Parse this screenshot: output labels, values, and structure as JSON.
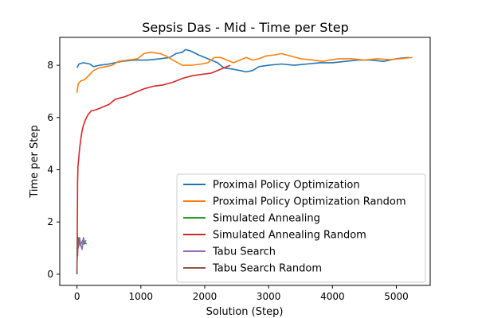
{
  "chart_data": {
    "type": "line",
    "title": "Sepsis Das - Mid - Time per Step",
    "xlabel": "Solution (Step)",
    "ylabel": "Time per Step",
    "xlim": [
      -270,
      5530
    ],
    "ylim": [
      -0.43,
      9.07
    ],
    "xticks": [
      0,
      1000,
      2000,
      3000,
      4000,
      5000
    ],
    "yticks": [
      0,
      2,
      4,
      6,
      8
    ],
    "grid": false,
    "legend_position": "lower-right",
    "series": [
      {
        "name": "Proximal Policy Optimization",
        "color": "#1f77b4",
        "points": [
          [
            0,
            7.9
          ],
          [
            30,
            8.05
          ],
          [
            100,
            8.1
          ],
          [
            200,
            8.05
          ],
          [
            260,
            7.95
          ],
          [
            350,
            8.0
          ],
          [
            500,
            8.05
          ],
          [
            700,
            8.15
          ],
          [
            900,
            8.2
          ],
          [
            1100,
            8.2
          ],
          [
            1300,
            8.25
          ],
          [
            1450,
            8.3
          ],
          [
            1550,
            8.45
          ],
          [
            1650,
            8.5
          ],
          [
            1700,
            8.6
          ],
          [
            1780,
            8.55
          ],
          [
            1900,
            8.4
          ],
          [
            2000,
            8.3
          ],
          [
            2100,
            8.2
          ],
          [
            2200,
            8.1
          ],
          [
            2300,
            7.9
          ],
          [
            2450,
            7.85
          ],
          [
            2550,
            7.8
          ],
          [
            2650,
            7.75
          ],
          [
            2750,
            7.8
          ],
          [
            2850,
            7.95
          ],
          [
            3000,
            8.0
          ],
          [
            3200,
            8.05
          ],
          [
            3400,
            8.0
          ],
          [
            3600,
            8.05
          ],
          [
            3800,
            8.1
          ],
          [
            4000,
            8.1
          ],
          [
            4200,
            8.15
          ],
          [
            4400,
            8.2
          ],
          [
            4600,
            8.2
          ],
          [
            4800,
            8.15
          ],
          [
            5000,
            8.25
          ],
          [
            5100,
            8.28
          ],
          [
            5200,
            8.3
          ]
        ]
      },
      {
        "name": "Proximal Policy Optimization Random",
        "color": "#ff7f0e",
        "points": [
          [
            0,
            6.95
          ],
          [
            20,
            7.3
          ],
          [
            60,
            7.4
          ],
          [
            120,
            7.45
          ],
          [
            180,
            7.6
          ],
          [
            260,
            7.8
          ],
          [
            350,
            7.9
          ],
          [
            450,
            7.95
          ],
          [
            550,
            8.0
          ],
          [
            650,
            8.15
          ],
          [
            800,
            8.2
          ],
          [
            950,
            8.25
          ],
          [
            1050,
            8.45
          ],
          [
            1150,
            8.5
          ],
          [
            1300,
            8.45
          ],
          [
            1400,
            8.35
          ],
          [
            1500,
            8.2
          ],
          [
            1650,
            8.0
          ],
          [
            1800,
            8.0
          ],
          [
            1950,
            8.05
          ],
          [
            2050,
            8.1
          ],
          [
            2150,
            8.3
          ],
          [
            2250,
            8.3
          ],
          [
            2350,
            8.2
          ],
          [
            2450,
            8.1
          ],
          [
            2550,
            8.2
          ],
          [
            2650,
            8.3
          ],
          [
            2750,
            8.2
          ],
          [
            2850,
            8.25
          ],
          [
            2950,
            8.35
          ],
          [
            3100,
            8.4
          ],
          [
            3200,
            8.45
          ],
          [
            3350,
            8.35
          ],
          [
            3500,
            8.25
          ],
          [
            3700,
            8.2
          ],
          [
            3850,
            8.15
          ],
          [
            3950,
            8.2
          ],
          [
            4100,
            8.25
          ],
          [
            4300,
            8.25
          ],
          [
            4500,
            8.2
          ],
          [
            4700,
            8.25
          ],
          [
            4900,
            8.22
          ],
          [
            5050,
            8.25
          ],
          [
            5250,
            8.3
          ]
        ]
      },
      {
        "name": "Simulated Annealing",
        "color": "#2ca02c",
        "points": [
          [
            30,
            1.3
          ],
          [
            50,
            1.1
          ],
          [
            70,
            1.2
          ],
          [
            90,
            1.3
          ],
          [
            110,
            1.15
          ],
          [
            130,
            1.2
          ],
          [
            150,
            1.15
          ]
        ]
      },
      {
        "name": "Simulated Annealing Random",
        "color": "#d62728",
        "points": [
          [
            0,
            0.0
          ],
          [
            5,
            1.5
          ],
          [
            10,
            3.5
          ],
          [
            15,
            4.1
          ],
          [
            25,
            4.4
          ],
          [
            40,
            4.8
          ],
          [
            60,
            5.2
          ],
          [
            80,
            5.5
          ],
          [
            100,
            5.7
          ],
          [
            130,
            5.9
          ],
          [
            170,
            6.1
          ],
          [
            220,
            6.25
          ],
          [
            300,
            6.3
          ],
          [
            400,
            6.4
          ],
          [
            500,
            6.5
          ],
          [
            600,
            6.7
          ],
          [
            750,
            6.8
          ],
          [
            900,
            6.95
          ],
          [
            1050,
            7.1
          ],
          [
            1200,
            7.2
          ],
          [
            1350,
            7.25
          ],
          [
            1500,
            7.35
          ],
          [
            1650,
            7.5
          ],
          [
            1800,
            7.6
          ],
          [
            1950,
            7.65
          ],
          [
            2100,
            7.7
          ],
          [
            2200,
            7.8
          ],
          [
            2300,
            7.9
          ],
          [
            2400,
            8.0
          ]
        ]
      },
      {
        "name": "Tabu Search",
        "color": "#9467bd",
        "points": [
          [
            0,
            1.3
          ],
          [
            20,
            1.0
          ],
          [
            40,
            1.4
          ],
          [
            60,
            1.1
          ],
          [
            80,
            0.95
          ],
          [
            100,
            1.4
          ],
          [
            120,
            1.2
          ],
          [
            140,
            1.3
          ]
        ]
      },
      {
        "name": "Tabu Search Random",
        "color": "#8c564b",
        "points": [
          [
            0,
            0.0
          ],
          [
            3,
            0.8
          ],
          [
            6,
            1.5
          ],
          [
            10,
            0.7
          ],
          [
            15,
            1.2
          ],
          [
            20,
            1.4
          ],
          [
            30,
            1.2
          ]
        ]
      }
    ]
  }
}
